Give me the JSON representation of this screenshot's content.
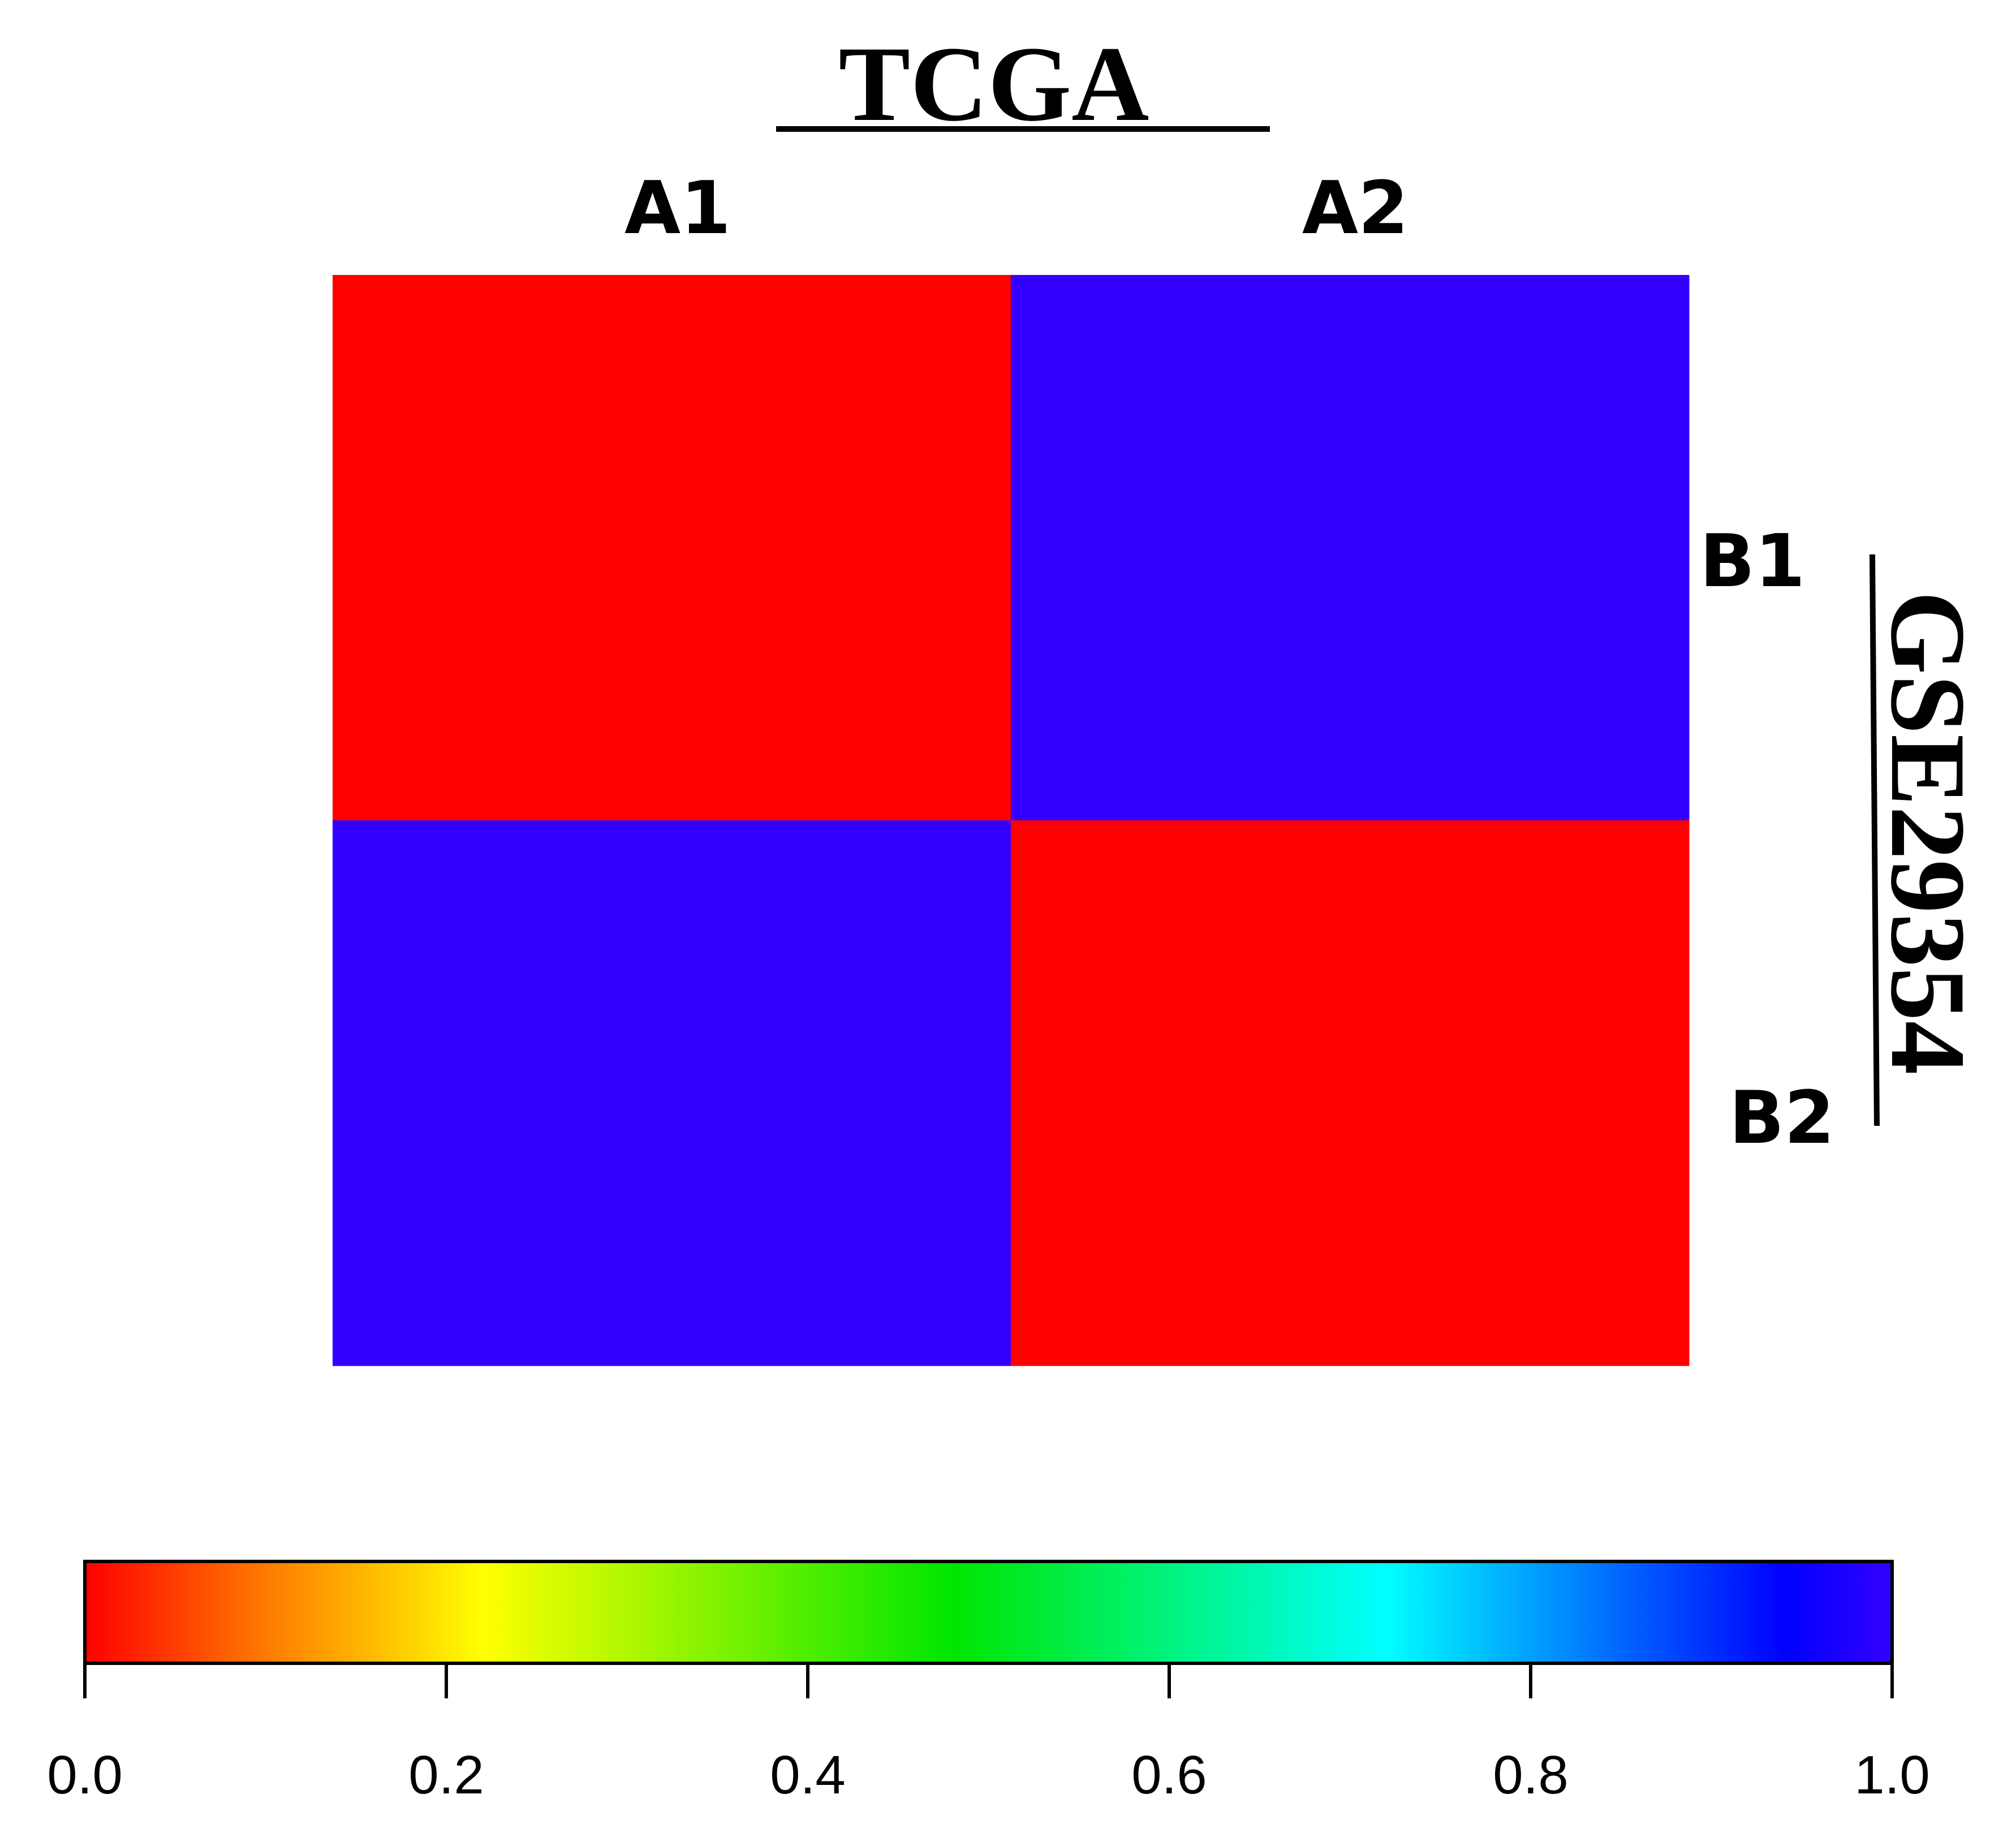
{
  "chart_data": {
    "type": "heatmap",
    "title": "TCGA",
    "side_title": "GSE29354",
    "columns": [
      "A1",
      "A2"
    ],
    "rows": [
      "B1",
      "B2"
    ],
    "values": [
      [
        0.0,
        1.0
      ],
      [
        1.0,
        0.0
      ]
    ],
    "colorbar": {
      "range": [
        0.0,
        1.0
      ],
      "ticks": [
        0.0,
        0.2,
        0.4,
        0.6,
        0.8,
        1.0
      ],
      "tick_labels": [
        "0.0",
        "0.2",
        "0.4",
        "0.6",
        "0.8",
        "1.0"
      ],
      "stops": [
        {
          "value": 0.0,
          "color": "#ff0000"
        },
        {
          "value": 0.1,
          "color": "#ff7a00"
        },
        {
          "value": 0.22,
          "color": "#ffff00"
        },
        {
          "value": 0.48,
          "color": "#00e600"
        },
        {
          "value": 0.72,
          "color": "#00ffff"
        },
        {
          "value": 0.85,
          "color": "#0066ff"
        },
        {
          "value": 0.94,
          "color": "#0000ff"
        },
        {
          "value": 1.0,
          "color": "#3300ff"
        }
      ]
    }
  },
  "colors": {
    "low": "#ff0000",
    "high": "#3300ff",
    "text": "#000000"
  }
}
